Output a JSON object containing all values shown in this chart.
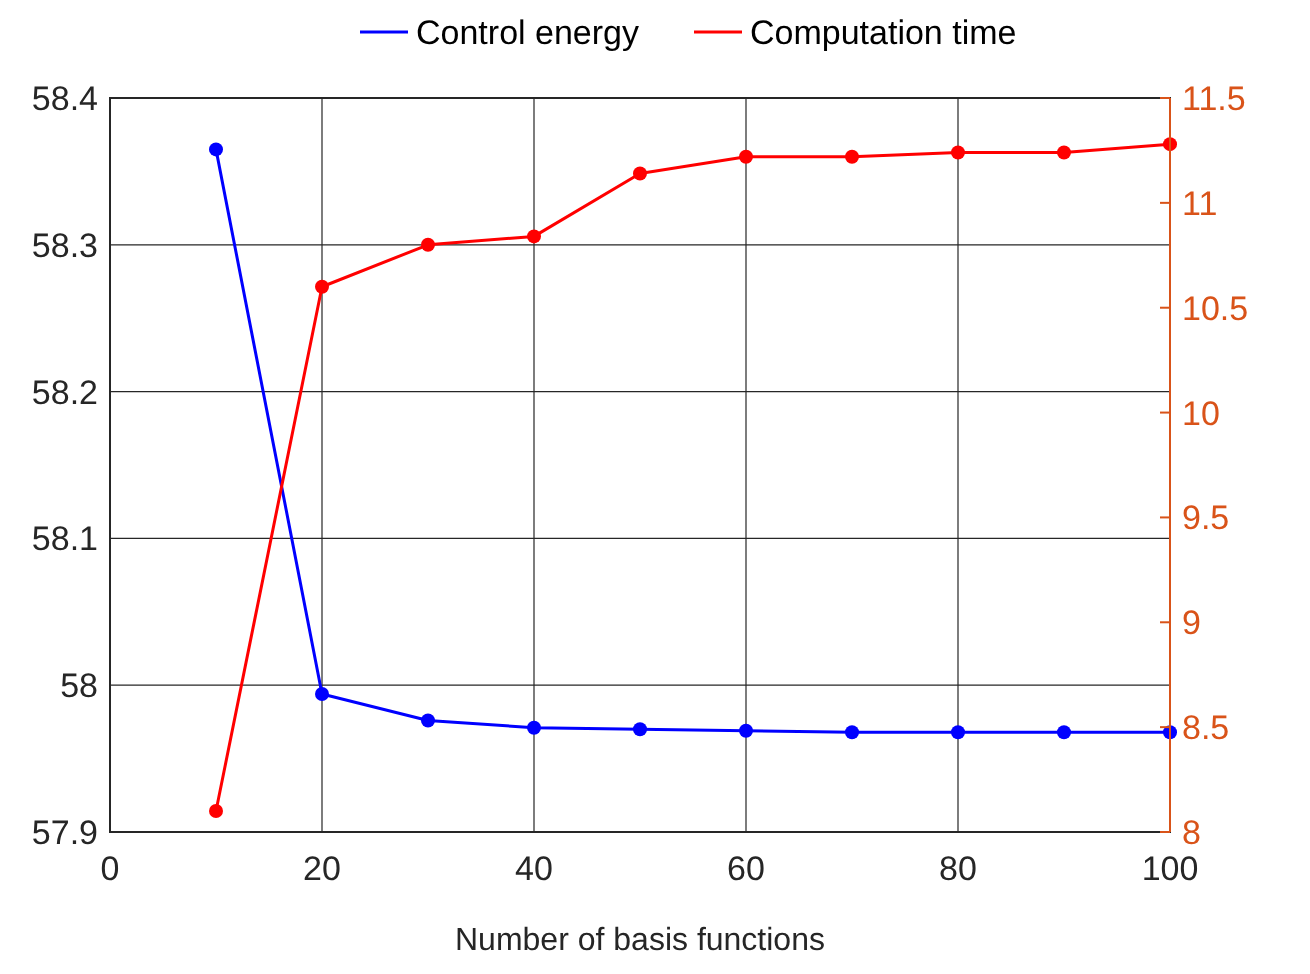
{
  "chart_data": {
    "type": "line",
    "xlabel": "Number of basis functions",
    "x": [
      10,
      20,
      30,
      40,
      50,
      60,
      70,
      80,
      90,
      100
    ],
    "series": [
      {
        "name": "Control energy",
        "color": "#0000ff",
        "values": [
          58.365,
          57.994,
          57.976,
          57.971,
          57.97,
          57.969,
          57.968,
          57.968,
          57.968,
          57.968
        ]
      },
      {
        "name": "Computation time",
        "color": "#ff0000",
        "axis": "y2",
        "values": [
          8.1,
          10.6,
          10.8,
          10.84,
          11.14,
          11.22,
          11.22,
          11.24,
          11.24,
          11.28
        ]
      }
    ],
    "xlim": [
      0,
      100
    ],
    "xticks": [
      0,
      20,
      40,
      60,
      80,
      100
    ],
    "ylim": [
      57.9,
      58.4
    ],
    "yticks": [
      {
        "value": 57.9,
        "label": "57.9"
      },
      {
        "value": 58,
        "label": "58"
      },
      {
        "value": 58.1,
        "label": "58.1"
      },
      {
        "value": 58.2,
        "label": "58.2"
      },
      {
        "value": 58.3,
        "label": "58.3"
      },
      {
        "value": 58.4,
        "label": "58.4"
      }
    ],
    "y2lim": [
      8,
      11.5
    ],
    "y2ticks": [
      8,
      {
        "value": 8.5,
        "label": "8.5"
      },
      9,
      {
        "value": 9.5,
        "label": "9.5"
      },
      10,
      {
        "value": 10.5,
        "label": "10.5"
      },
      11,
      {
        "value": 11.5,
        "label": "11.5"
      }
    ],
    "grid": true,
    "legend": "top",
    "marker": "circle",
    "line_style": "solid"
  }
}
